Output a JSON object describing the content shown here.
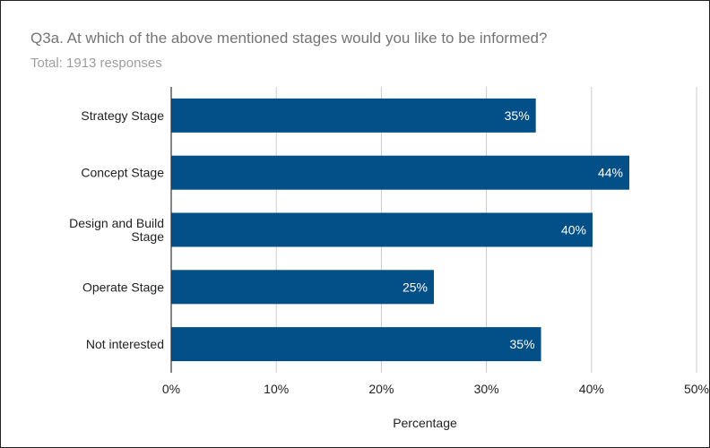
{
  "chart_data": {
    "type": "bar",
    "orientation": "horizontal",
    "title": "Q3a. At which of the above mentioned stages would you like to be informed?",
    "subtitle": "Total: 1913 responses",
    "categories": [
      "Strategy Stage",
      "Concept Stage",
      "Design and Build Stage",
      "Operate Stage",
      "Not interested"
    ],
    "category_lines": [
      [
        "Strategy Stage"
      ],
      [
        "Concept Stage"
      ],
      [
        "Design and Build",
        "Stage"
      ],
      [
        "Operate Stage"
      ],
      [
        "Not interested"
      ]
    ],
    "values": [
      34.7,
      43.6,
      40.1,
      25.0,
      35.2
    ],
    "value_labels": [
      "35%",
      "44%",
      "40%",
      "25%",
      "35%"
    ],
    "xlabel": "Percentage",
    "ylabel": "",
    "xlim": [
      0,
      50
    ],
    "x_ticks": [
      0,
      10,
      20,
      30,
      40,
      50
    ],
    "x_tick_labels": [
      "0%",
      "10%",
      "20%",
      "30%",
      "40%",
      "50%"
    ],
    "grid": true,
    "legend": "none",
    "bar_color": "#034f88",
    "grid_color": "#cccccc"
  }
}
